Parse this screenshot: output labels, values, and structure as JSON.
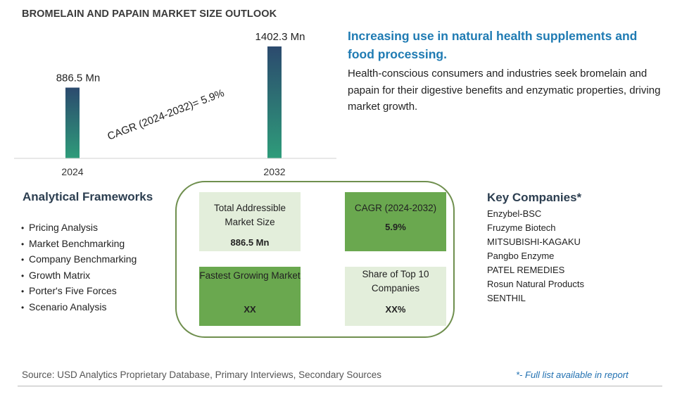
{
  "title": "BROMELAIN AND PAPAIN MARKET SIZE OUTLOOK",
  "chart_data": {
    "type": "bar",
    "categories": [
      "2024",
      "2032"
    ],
    "values": [
      886.5,
      1402.3
    ],
    "value_labels": [
      "886.5 Mn",
      "1402.3 Mn"
    ],
    "annotation": "CAGR (2024-2032)=  5.9%",
    "colors": {
      "bar_top": "#2c4a6e",
      "bar_bottom": "#2e9c7a"
    }
  },
  "headline": "Increasing use in natural health supplements and food processing.",
  "description": "Health-conscious consumers and industries seek bromelain and papain for their digestive benefits and enzymatic properties, driving market growth.",
  "frameworks": {
    "title": "Analytical Frameworks",
    "bullet": "•",
    "items": [
      "Pricing Analysis",
      "Market Benchmarking",
      "Company Benchmarking",
      "Growth Matrix",
      "Porter's Five Forces",
      "Scenario Analysis"
    ]
  },
  "metrics": {
    "tam": {
      "label": "Total Addressible Market Size",
      "value": "886.5 Mn"
    },
    "cagr": {
      "label": "CAGR (2024-2032)",
      "value": "5.9%"
    },
    "fastest": {
      "label": "Fastest Growing Market",
      "value": "XX"
    },
    "share": {
      "label": "Share of Top 10 Companies",
      "value": "XX%"
    },
    "colors": {
      "light": "#e3eedb",
      "dark": "#6aa84f",
      "border": "#6f8f4e"
    }
  },
  "companies": {
    "title": "Key Companies*",
    "items": [
      "Enzybel-BSC",
      "Fruzyme Biotech",
      "MITSUBISHI-KAGAKU",
      "Pangbo Enzyme",
      "PATEL REMEDIES",
      "Rosun Natural Products",
      "SENTHIL"
    ]
  },
  "footer": {
    "source": "Source: USD Analytics Proprietary Database, Primary Interviews, Secondary Sources",
    "note": "*- Full list available in report"
  }
}
